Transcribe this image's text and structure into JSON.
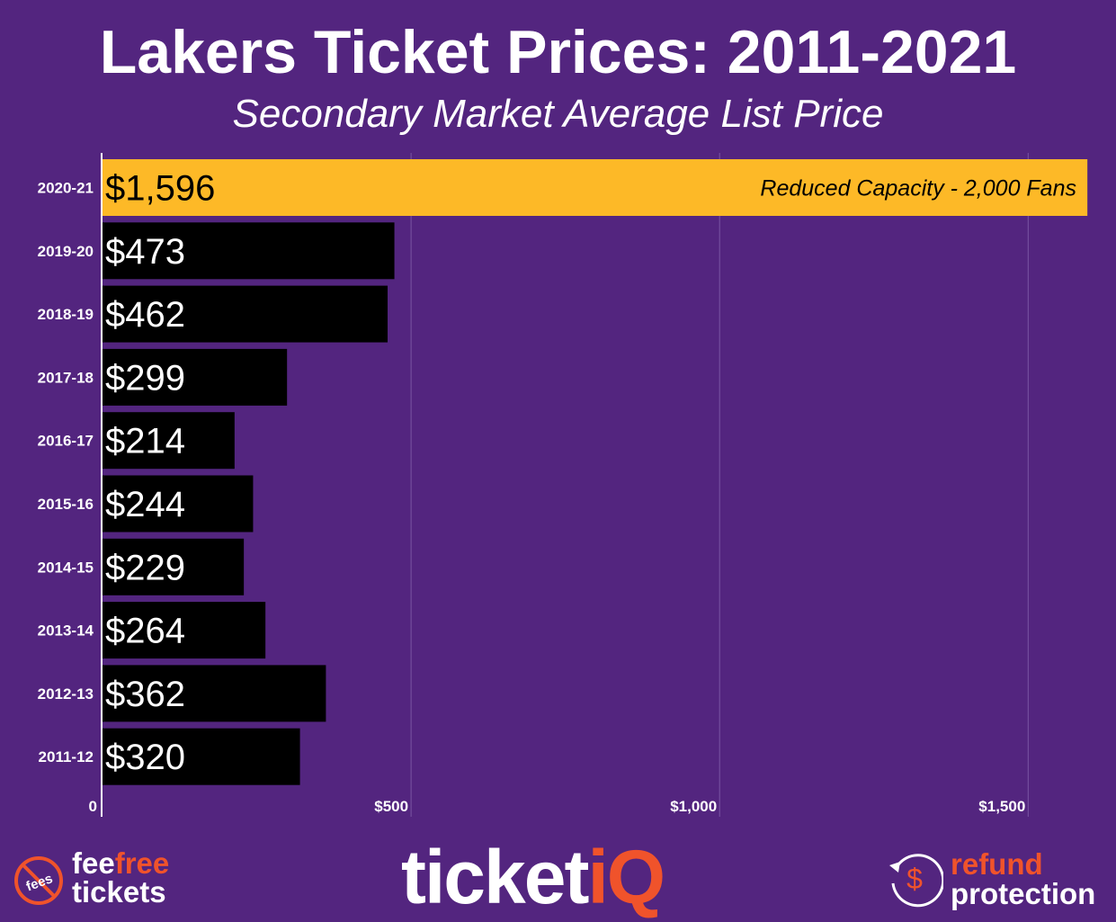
{
  "title": "Lakers Ticket Prices: 2011-2021",
  "subtitle": "Secondary Market Average List Price",
  "chart_data": {
    "type": "bar",
    "orientation": "horizontal",
    "categories": [
      "2020-21",
      "2019-20",
      "2018-19",
      "2017-18",
      "2016-17",
      "2015-16",
      "2014-15",
      "2013-14",
      "2012-13",
      "2011-12"
    ],
    "values": [
      1596,
      473,
      462,
      299,
      214,
      244,
      229,
      264,
      362,
      320
    ],
    "data_labels": [
      "$1,596",
      "$473",
      "$462",
      "$299",
      "$214",
      "$244",
      "$229",
      "$264",
      "$362",
      "$320"
    ],
    "annotation": "Reduced Capacity - 2,000 Fans",
    "xlim": [
      0,
      1600
    ],
    "x_ticks": [
      0,
      500,
      1000,
      1500
    ],
    "x_tick_labels": [
      "0",
      "$500",
      "$1,000",
      "$1,500"
    ],
    "grid": true,
    "colors": {
      "highlight": "#fdb927",
      "bar": "#000000",
      "background": "#53257f"
    }
  },
  "footer": {
    "left_logo": {
      "icon": "no-fees-icon",
      "icon_text": "fees",
      "line1a": "fee",
      "line1b": "free",
      "line2": "tickets"
    },
    "center_logo": {
      "a": "ticket",
      "b": "iQ"
    },
    "right_logo": {
      "icon": "refund-dollar-icon",
      "icon_text": "$",
      "line1": "refund",
      "line2": "protection"
    }
  }
}
